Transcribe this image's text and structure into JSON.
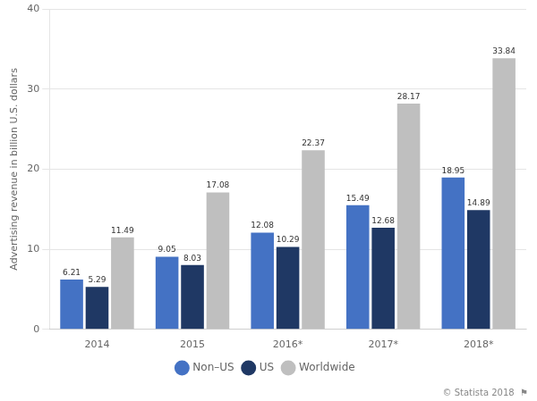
{
  "chart_data": {
    "type": "bar",
    "categories": [
      "2014",
      "2015",
      "2016*",
      "2017*",
      "2018*"
    ],
    "series": [
      {
        "name": "Non–US",
        "color": "#4472C4",
        "values": [
          6.21,
          9.05,
          12.08,
          15.49,
          18.95
        ]
      },
      {
        "name": "US",
        "color": "#1F3864",
        "values": [
          5.29,
          8.03,
          10.29,
          12.68,
          14.89
        ]
      },
      {
        "name": "Worldwide",
        "color": "#BFBFBF",
        "values": [
          11.49,
          17.08,
          22.37,
          28.17,
          33.84
        ]
      }
    ],
    "ylabel": "Advertising revenue in billion U.S. dollars",
    "ylim": [
      0,
      40
    ],
    "yticks": [
      0,
      10,
      20,
      30,
      40
    ],
    "grid": true,
    "legend": "bottom",
    "data_labels": true,
    "annotations": [
      "© Statista 2018  ⚑"
    ]
  }
}
